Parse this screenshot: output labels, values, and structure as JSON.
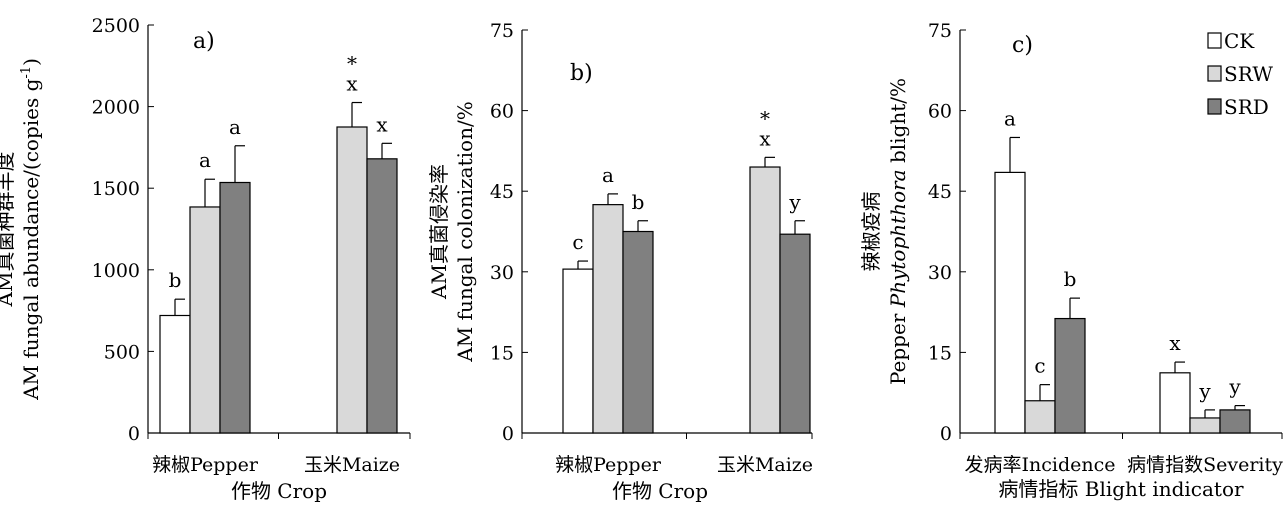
{
  "chart_data": [
    {
      "type": "bar",
      "panel_label": "a)",
      "categories": [
        "辣椒Pepper",
        "玉米Maize"
      ],
      "xlabel": "作物 Crop",
      "ylabel_cn": "AM真菌种群丰度",
      "ylabel_en": "AM fungal abundance/(copies g",
      "ylabel_sup": "-1",
      "ylabel_tail": ")",
      "ylim": [
        0,
        2500
      ],
      "yticks": [
        0,
        500,
        1000,
        1500,
        2000,
        2500
      ],
      "series": [
        {
          "name": "CK",
          "values": [
            720,
            null
          ],
          "errors": [
            100,
            null
          ],
          "labels": [
            "b",
            ""
          ],
          "marks": [
            "",
            ""
          ]
        },
        {
          "name": "SRW",
          "values": [
            1385,
            1875
          ],
          "errors": [
            170,
            150
          ],
          "labels": [
            "a",
            "x"
          ],
          "marks": [
            "",
            "*"
          ]
        },
        {
          "name": "SRD",
          "values": [
            1535,
            1680
          ],
          "errors": [
            225,
            95
          ],
          "labels": [
            "a",
            "x"
          ],
          "marks": [
            "",
            ""
          ]
        }
      ]
    },
    {
      "type": "bar",
      "panel_label": "b)",
      "categories": [
        "辣椒Pepper",
        "玉米Maize"
      ],
      "xlabel": "作物 Crop",
      "ylabel_cn": "AM真菌侵染率",
      "ylabel_en": "AM fungal colonization/%",
      "ylim": [
        0,
        75
      ],
      "yticks": [
        0,
        15,
        30,
        45,
        60,
        75
      ],
      "series": [
        {
          "name": "CK",
          "values": [
            30.5,
            null
          ],
          "errors": [
            1.5,
            null
          ],
          "labels": [
            "c",
            ""
          ],
          "marks": [
            "",
            ""
          ]
        },
        {
          "name": "SRW",
          "values": [
            42.5,
            49.5
          ],
          "errors": [
            2.0,
            1.8
          ],
          "labels": [
            "a",
            "x"
          ],
          "marks": [
            "",
            "*"
          ]
        },
        {
          "name": "SRD",
          "values": [
            37.5,
            37.0
          ],
          "errors": [
            2.0,
            2.5
          ],
          "labels": [
            "b",
            "y"
          ],
          "marks": [
            "",
            ""
          ]
        }
      ]
    },
    {
      "type": "bar",
      "panel_label": "c)",
      "categories": [
        "发病率Incidence",
        "病情指数Severity"
      ],
      "xlabel": "病情指标 Blight indicator",
      "ylabel_cn": "辣椒疫病",
      "ylabel_en_pre": "Pepper ",
      "ylabel_en_italic": "Phytophthora",
      "ylabel_en_post": " blight/%",
      "ylim": [
        0,
        75
      ],
      "yticks": [
        0,
        15,
        30,
        45,
        60,
        75
      ],
      "series": [
        {
          "name": "CK",
          "values": [
            48.5,
            11.2
          ],
          "errors": [
            6.5,
            2.0
          ],
          "labels": [
            "a",
            "x"
          ],
          "marks": [
            "",
            ""
          ]
        },
        {
          "name": "SRW",
          "values": [
            6.0,
            2.8
          ],
          "errors": [
            3.0,
            1.5
          ],
          "labels": [
            "c",
            "y"
          ],
          "marks": [
            "",
            ""
          ]
        },
        {
          "name": "SRD",
          "values": [
            21.3,
            4.3
          ],
          "errors": [
            3.8,
            0.8
          ],
          "labels": [
            "b",
            "y"
          ],
          "marks": [
            "",
            ""
          ]
        }
      ],
      "legend": {
        "position": "top-right",
        "entries": [
          "CK",
          "SRW",
          "SRD"
        ]
      }
    }
  ],
  "colors": {
    "CK": "#ffffff",
    "SRW": "#d9d9d9",
    "SRD": "#808080"
  }
}
